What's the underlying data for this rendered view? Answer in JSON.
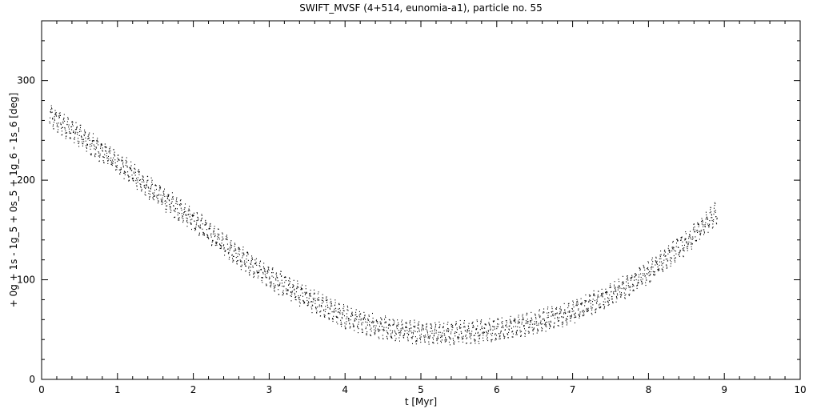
{
  "chart_data": {
    "type": "scatter",
    "title": "SWIFT_MVSF (4+514, eunomia-a1), particle no. 55",
    "xlabel": "t [Myr]",
    "ylabel": "+ 0g + 1s - 1g_5 + 0s_5 + 1g_6 - 1s_6 [deg]",
    "xlim": [
      0,
      10
    ],
    "ylim": [
      0,
      360
    ],
    "x_ticks": [
      "0",
      "1",
      "2",
      "3",
      "4",
      "5",
      "6",
      "7",
      "8",
      "9",
      "10"
    ],
    "y_ticks": [
      "0",
      "100",
      "200",
      "300"
    ],
    "grid": false,
    "legend": "none",
    "marker_color": "#000000",
    "trend": {
      "x": [
        0.1,
        0.5,
        1.0,
        1.5,
        2.0,
        2.5,
        3.0,
        3.5,
        4.0,
        4.5,
        5.0,
        5.5,
        6.0,
        6.5,
        7.0,
        7.5,
        8.0,
        8.5,
        8.9
      ],
      "y": [
        265,
        245,
        218,
        188,
        160,
        130,
        103,
        82,
        63,
        52,
        47,
        47,
        50,
        57,
        68,
        85,
        108,
        138,
        168
      ],
      "band_halfwidth_deg": 10
    }
  }
}
